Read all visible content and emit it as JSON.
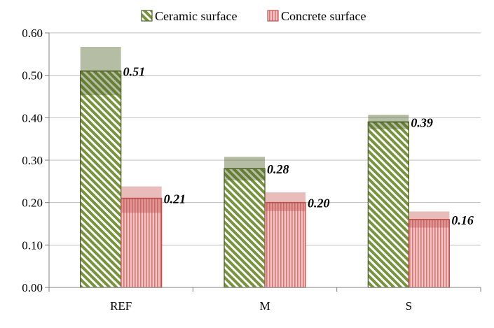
{
  "chart_data": {
    "type": "bar",
    "title": "",
    "xlabel": "",
    "ylabel": "",
    "ylim": [
      0,
      0.6
    ],
    "y_ticks": [
      "0.00",
      "0.10",
      "0.20",
      "0.30",
      "0.40",
      "0.50",
      "0.60"
    ],
    "grid": true,
    "legend_placement": "top-center",
    "categories": [
      "REF",
      "M",
      "S"
    ],
    "series": [
      {
        "name": "Ceramic surface",
        "color": "#77933c",
        "values": [
          0.51,
          0.28,
          0.39
        ],
        "error_upper": [
          0.567,
          0.308,
          0.407
        ],
        "error_lower": [
          0.453,
          0.252,
          0.373
        ],
        "labels": [
          "0.51",
          "0.28",
          "0.39"
        ]
      },
      {
        "name": "Concrete surface",
        "color": "#d99694",
        "values": [
          0.21,
          0.2,
          0.16
        ],
        "error_upper": [
          0.238,
          0.224,
          0.179
        ],
        "error_lower": [
          0.176,
          0.18,
          0.141
        ],
        "labels": [
          "0.21",
          "0.20",
          "0.16"
        ]
      }
    ]
  }
}
